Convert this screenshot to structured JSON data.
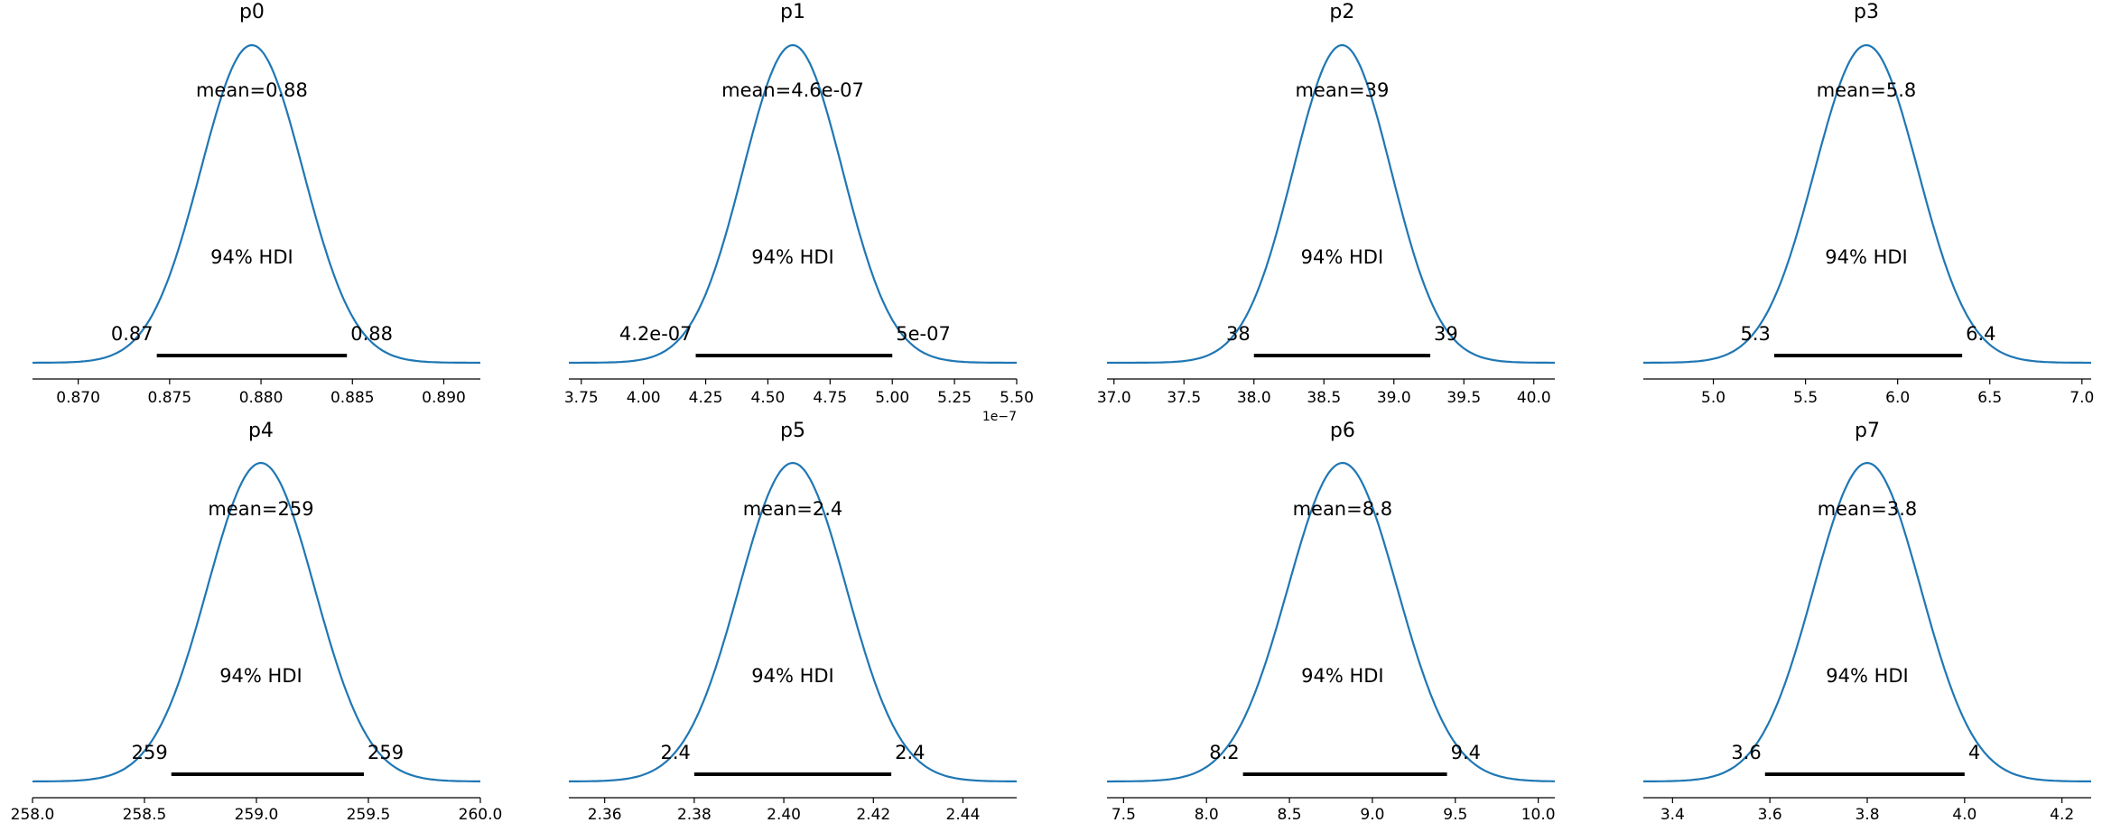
{
  "chart_data": [
    {
      "type": "area",
      "title": "p0",
      "mean": 0.8795,
      "sd": 0.0028,
      "mean_label": "mean=0.88",
      "hdi_label": "94% HDI",
      "hdi": [
        0.8743,
        0.8847
      ],
      "hdi_low_label": "0.87",
      "hdi_high_label": "0.88",
      "xlim": [
        0.8675,
        0.892
      ],
      "xticks": [
        0.87,
        0.875,
        0.88,
        0.885,
        0.89
      ],
      "xtick_labels": [
        "0.870",
        "0.875",
        "0.880",
        "0.885",
        "0.890"
      ],
      "offset_label": ""
    },
    {
      "type": "area",
      "title": "p1",
      "mean": 4.6e-07,
      "sd": 2e-08,
      "mean_label": "mean=4.6e-07",
      "hdi_label": "94% HDI",
      "hdi": [
        4.21e-07,
        5e-07
      ],
      "hdi_low_label": "4.2e-07",
      "hdi_high_label": "5e-07",
      "xlim": [
        3.7e-07,
        5.5e-07
      ],
      "xticks": [
        3.75e-07,
        4e-07,
        4.25e-07,
        4.5e-07,
        4.75e-07,
        5e-07,
        5.25e-07,
        5.5e-07
      ],
      "xtick_labels": [
        "3.75",
        "4.00",
        "4.25",
        "4.50",
        "4.75",
        "5.00",
        "5.25",
        "5.50"
      ],
      "offset_label": "1e−7"
    },
    {
      "type": "area",
      "title": "p2",
      "mean": 38.63,
      "sd": 0.35,
      "mean_label": "mean=39",
      "hdi_label": "94% HDI",
      "hdi": [
        38.0,
        39.26
      ],
      "hdi_low_label": "38",
      "hdi_high_label": "39",
      "xlim": [
        36.95,
        40.15
      ],
      "xticks": [
        37.0,
        37.5,
        38.0,
        38.5,
        39.0,
        39.5,
        40.0
      ],
      "xtick_labels": [
        "37.0",
        "37.5",
        "38.0",
        "38.5",
        "39.0",
        "39.5",
        "40.0"
      ],
      "offset_label": ""
    },
    {
      "type": "area",
      "title": "p3",
      "mean": 5.83,
      "sd": 0.28,
      "mean_label": "mean=5.8",
      "hdi_label": "94% HDI",
      "hdi": [
        5.33,
        6.35
      ],
      "hdi_low_label": "5.3",
      "hdi_high_label": "6.4",
      "xlim": [
        4.62,
        7.05
      ],
      "xticks": [
        5.0,
        5.5,
        6.0,
        6.5,
        7.0
      ],
      "xtick_labels": [
        "5.0",
        "5.5",
        "6.0",
        "6.5",
        "7.0"
      ],
      "offset_label": ""
    },
    {
      "type": "area",
      "title": "p4",
      "mean": 259.02,
      "sd": 0.24,
      "mean_label": "mean=259",
      "hdi_label": "94% HDI",
      "hdi": [
        258.62,
        259.48
      ],
      "hdi_low_label": "259",
      "hdi_high_label": "259",
      "xlim": [
        258.0,
        260.0
      ],
      "xticks": [
        258.0,
        258.5,
        259.0,
        259.5,
        260.0
      ],
      "xtick_labels": [
        "258.0",
        "258.5",
        "259.0",
        "259.5",
        "260.0"
      ],
      "offset_label": ""
    },
    {
      "type": "area",
      "title": "p5",
      "mean": 2.402,
      "sd": 0.012,
      "mean_label": "mean=2.4",
      "hdi_label": "94% HDI",
      "hdi": [
        2.38,
        2.424
      ],
      "hdi_low_label": "2.4",
      "hdi_high_label": "2.4",
      "xlim": [
        2.352,
        2.452
      ],
      "xticks": [
        2.36,
        2.38,
        2.4,
        2.42,
        2.44
      ],
      "xtick_labels": [
        "2.36",
        "2.38",
        "2.40",
        "2.42",
        "2.44"
      ],
      "offset_label": ""
    },
    {
      "type": "area",
      "title": "p6",
      "mean": 8.82,
      "sd": 0.33,
      "mean_label": "mean=8.8",
      "hdi_label": "94% HDI",
      "hdi": [
        8.22,
        9.45
      ],
      "hdi_low_label": "8.2",
      "hdi_high_label": "9.4",
      "xlim": [
        7.4,
        10.1
      ],
      "xticks": [
        7.5,
        8.0,
        8.5,
        9.0,
        9.5,
        10.0
      ],
      "xtick_labels": [
        "7.5",
        "8.0",
        "8.5",
        "9.0",
        "9.5",
        "10.0"
      ],
      "offset_label": ""
    },
    {
      "type": "area",
      "title": "p7",
      "mean": 3.8,
      "sd": 0.11,
      "mean_label": "mean=3.8",
      "hdi_label": "94% HDI",
      "hdi": [
        3.59,
        4.0
      ],
      "hdi_low_label": "3.6",
      "hdi_high_label": "4",
      "xlim": [
        3.34,
        4.26
      ],
      "xticks": [
        3.4,
        3.6,
        3.8,
        4.0,
        4.2
      ],
      "xtick_labels": [
        "3.4",
        "3.6",
        "3.8",
        "4.0",
        "4.2"
      ],
      "offset_label": ""
    }
  ],
  "colors": {
    "density": "#1f77b4",
    "hdi_bar": "#000000"
  }
}
